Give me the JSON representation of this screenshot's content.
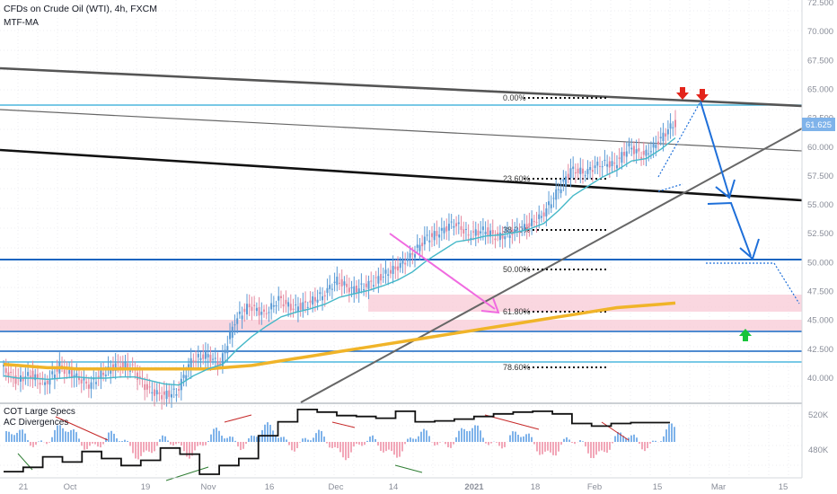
{
  "header": {
    "title": "CFDs on Crude Oil (WTI), 4h, FXCM",
    "indicator1": "MTF-MA",
    "sub_indicator1": "COT Large Specs",
    "sub_indicator2": "AC Divergences"
  },
  "colors": {
    "candle_up": "#5b9bd5",
    "candle_down": "#e48aa0",
    "ma_fast": "#45b8c8",
    "ma_slow": "#f0b429",
    "hline": "#1565c0",
    "projection": "#1e6fd9",
    "magenta_arrow": "#f06ae0",
    "last_price_bg": "#7fb3ea",
    "support_zone": "#f8c9d6"
  },
  "price_axis": {
    "ticks": [
      "72.500",
      "70.000",
      "67.500",
      "65.000",
      "62.500",
      "60.000",
      "57.500",
      "55.000",
      "52.500",
      "50.000",
      "47.500",
      "45.000",
      "42.500",
      "40.000"
    ],
    "last_price": "61.625"
  },
  "sub_axis": {
    "ticks": [
      "520K",
      "480K"
    ]
  },
  "time_axis": {
    "labels": [
      "21",
      "Oct",
      "19",
      "Nov",
      "16",
      "Dec",
      "14",
      "2021",
      "18",
      "Feb",
      "15",
      "Mar",
      "15"
    ]
  },
  "fibonacci": {
    "levels": [
      "0.00%",
      "23.60%",
      "38.20%",
      "50.00%",
      "61.80%",
      "78.60%"
    ]
  },
  "chart_data": {
    "type": "line",
    "title": "CFDs on Crude Oil (WTI), 4h, FXCM",
    "ylim": [
      37.5,
      72.5
    ],
    "x_labels": [
      "21",
      "Oct",
      "19",
      "Nov",
      "16",
      "Dec",
      "14",
      "2021",
      "18",
      "Feb",
      "15",
      "Mar",
      "15"
    ],
    "series": [
      {
        "name": "CFDs on Crude Oil (WTI)",
        "values": [
          41.0,
          39.8,
          40.3,
          39.5,
          41.0,
          40.2,
          39.4,
          40.5,
          41.2,
          40.8,
          39.0,
          38.5,
          38.8,
          41.5,
          42.0,
          41.2,
          45.0,
          46.3,
          45.5,
          46.8,
          46.0,
          46.5,
          47.2,
          48.5,
          47.6,
          48.0,
          48.8,
          49.5,
          50.5,
          52.0,
          52.6,
          53.5,
          52.4,
          52.8,
          52.2,
          52.6,
          53.2,
          54.0,
          56.0,
          58.0,
          57.8,
          58.6,
          58.5,
          60.0,
          59.2,
          60.5,
          62.0
        ]
      },
      {
        "name": "MTF-MA",
        "values": [
          40.2,
          40.0,
          40.0,
          39.9,
          40.0,
          40.1,
          40.0,
          40.0,
          40.1,
          40.1,
          39.8,
          39.5,
          39.4,
          40.2,
          40.8,
          41.2,
          42.5,
          43.6,
          44.5,
          45.3,
          45.7,
          46.0,
          46.4,
          47.0,
          47.3,
          47.6,
          48.0,
          48.5,
          49.2,
          50.2,
          51.0,
          51.8,
          52.0,
          52.3,
          52.4,
          52.6,
          52.9,
          53.4,
          54.5,
          55.8,
          56.6,
          57.4,
          58.0,
          58.8,
          59.0,
          59.8,
          60.8
        ]
      },
      {
        "name": "MTF-MA (slow)",
        "values": [
          41.2,
          41.1,
          41.0,
          40.9,
          40.9,
          40.8,
          40.8,
          40.8,
          40.8,
          40.8,
          40.8,
          40.8,
          40.8,
          40.8,
          40.8,
          40.9,
          41.0,
          41.1,
          41.3,
          41.5,
          41.7,
          41.9,
          42.1,
          42.3,
          42.5,
          42.7,
          42.9,
          43.1,
          43.3,
          43.5,
          43.7,
          43.9,
          44.1,
          44.3,
          44.5,
          44.7,
          44.9,
          45.1,
          45.3,
          45.5,
          45.7,
          45.9,
          46.1,
          46.2,
          46.3,
          46.4,
          46.5
        ]
      }
    ],
    "cot_large_specs": {
      "name": "COT Large Specs",
      "ylim": [
        450000,
        530000
      ],
      "values": [
        455,
        460,
        472,
        466,
        478,
        470,
        462,
        468,
        482,
        475,
        452,
        462,
        470,
        496,
        512,
        526,
        523,
        519,
        518,
        516,
        524,
        512,
        513,
        515,
        518,
        521,
        523,
        524,
        521,
        510,
        507,
        510,
        511,
        511
      ]
    }
  }
}
